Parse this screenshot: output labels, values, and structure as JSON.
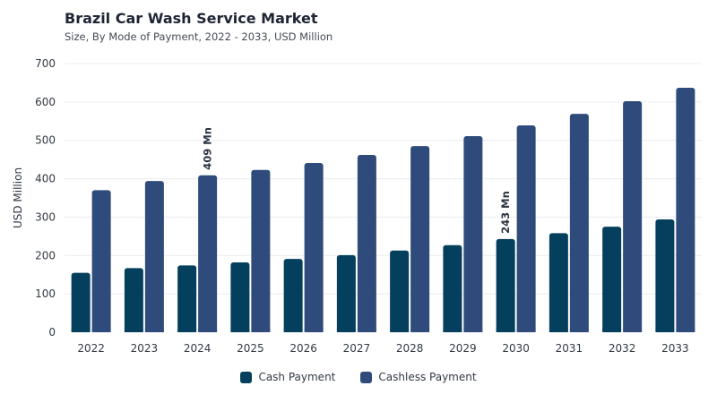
{
  "header": {
    "title": "Brazil Car Wash Service Market",
    "subtitle": "Size, By Mode of Payment, 2022 - 2033, USD Million"
  },
  "colors": {
    "cash": "#04405e",
    "cashless": "#2f4b7c",
    "grid": "#e9ecf0",
    "axis_text": "#333a44"
  },
  "chart_data": {
    "type": "bar",
    "title": "Brazil Car Wash Service Market",
    "subtitle": "Size, By Mode of Payment, 2022 - 2033, USD Million",
    "xlabel": "",
    "ylabel": "USD Million",
    "ylim": [
      0,
      700
    ],
    "yticks": [
      0,
      100,
      200,
      300,
      400,
      500,
      600,
      700
    ],
    "grid": true,
    "legend_position": "bottom",
    "categories": [
      "2022",
      "2023",
      "2024",
      "2025",
      "2026",
      "2027",
      "2028",
      "2029",
      "2030",
      "2031",
      "2032",
      "2033"
    ],
    "series": [
      {
        "name": "Cash Payment",
        "values": [
          155,
          167,
          174,
          182,
          191,
          201,
          213,
          227,
          243,
          258,
          275,
          294
        ]
      },
      {
        "name": "Cashless Payment",
        "values": [
          370,
          394,
          409,
          423,
          441,
          462,
          485,
          511,
          539,
          569,
          602,
          637
        ]
      }
    ],
    "annotations": [
      {
        "series": 1,
        "category": "2024",
        "text": "409 Mn"
      },
      {
        "series": 0,
        "category": "2030",
        "text": "243 Mn"
      }
    ]
  }
}
